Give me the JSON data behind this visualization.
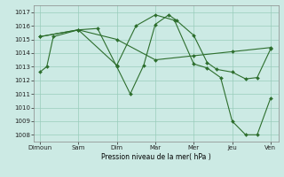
{
  "background_color": "#cceae4",
  "grid_color": "#99ccbb",
  "line_color": "#2d6e2d",
  "x_labels": [
    "Dimoun",
    "Sam",
    "Dim",
    "Mar",
    "Mer",
    "Jeu",
    "Ven"
  ],
  "x_positions": [
    0,
    1,
    2,
    3,
    4,
    5,
    6
  ],
  "xlabel": "Pression niveau de la mer( hPa )",
  "ylim": [
    1007.5,
    1017.5
  ],
  "yticks": [
    1008,
    1009,
    1010,
    1011,
    1012,
    1013,
    1014,
    1015,
    1016,
    1017
  ],
  "series1_x": [
    0,
    0.18,
    0.35,
    1.0,
    1.5,
    2.0,
    2.35,
    2.7,
    3.0,
    3.35,
    3.55,
    4.0,
    4.35,
    4.6,
    5.0,
    5.35,
    5.65,
    6.0
  ],
  "series1_y": [
    1012.6,
    1013.0,
    1015.2,
    1015.7,
    1015.8,
    1013.0,
    1011.0,
    1013.1,
    1016.1,
    1016.8,
    1016.4,
    1015.3,
    1013.3,
    1012.8,
    1012.6,
    1012.1,
    1012.2,
    1014.3
  ],
  "series2_x": [
    0,
    1.0,
    2.0,
    3.0,
    4.0,
    5.0,
    6.0
  ],
  "series2_y": [
    1015.2,
    1015.7,
    1015.0,
    1013.5,
    1013.8,
    1014.1,
    1014.4
  ],
  "series3_x": [
    0,
    1.0,
    2.0,
    2.5,
    3.0,
    3.5,
    4.0,
    4.35,
    4.7,
    5.0,
    5.35,
    5.65,
    6.0
  ],
  "series3_y": [
    1015.2,
    1015.7,
    1013.1,
    1016.0,
    1016.8,
    1016.4,
    1013.2,
    1012.9,
    1012.2,
    1009.0,
    1008.0,
    1008.0,
    1010.7
  ]
}
